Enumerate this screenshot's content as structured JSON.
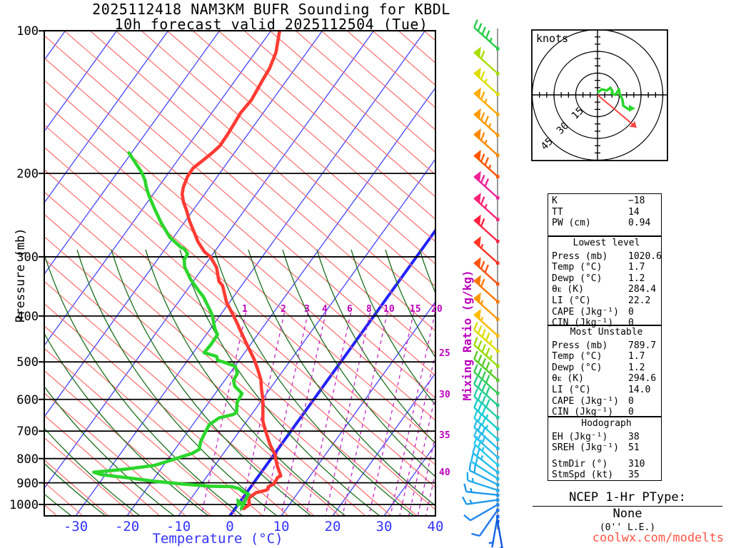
{
  "title": {
    "line1": "2025112418 NAM3KM BUFR Sounding for KBDL",
    "line2": "10h forecast valid 2025112504 (Tue)"
  },
  "watermark": {
    "text": "coolwx.com/modelts"
  },
  "axes": {
    "pressure_label": "Pressure (mb)",
    "temp_label": "Temperature (°C)",
    "mixing_label": "Mixing Ratio (g/kg)",
    "pressure_ticks": [
      100,
      200,
      300,
      400,
      500,
      600,
      700,
      800,
      900,
      1000
    ],
    "temp_ticks": [
      -30,
      -20,
      -10,
      0,
      10,
      20,
      30,
      40
    ],
    "mixing_ticks_top": [
      1,
      2,
      3,
      4,
      6,
      8,
      10,
      15,
      20
    ],
    "mixing_ticks_right": [
      25,
      30,
      35,
      40
    ]
  },
  "colors": {
    "temperature_trace": "#ff3b33",
    "dewpoint_trace": "#2cd62c",
    "isotherm": "#4444ff",
    "isotherm_zero": "#2222ff",
    "dry_adiabat": "#ff6060",
    "moist_adiabat": "#1b6e1b",
    "mixing_ratio": "#c322c3",
    "pressure_line": "#000000",
    "barb_line": "#999999",
    "hodo_arrow": "#ff4444",
    "hodo_trace": "#2cd62c",
    "watermark": "#ff5544",
    "temp_axis": "#3333ff"
  },
  "chart_data": {
    "type": "skewt-sounding",
    "pressure_range_mb": [
      100,
      1050
    ],
    "temp_axis_range_c": [
      -36,
      40
    ],
    "isotherm_step_c": 10,
    "temperature_profile": [
      {
        "p": 100,
        "t": -58.3
      },
      {
        "p": 111,
        "t": -56.0
      },
      {
        "p": 120,
        "t": -55.0
      },
      {
        "p": 127,
        "t": -54.7
      },
      {
        "p": 140,
        "t": -54.1
      },
      {
        "p": 149,
        "t": -54.4
      },
      {
        "p": 158,
        "t": -54.1
      },
      {
        "p": 166,
        "t": -53.9
      },
      {
        "p": 175,
        "t": -53.8
      },
      {
        "p": 181,
        "t": -54.3
      },
      {
        "p": 188,
        "t": -55.1
      },
      {
        "p": 195,
        "t": -55.9
      },
      {
        "p": 203,
        "t": -55.8
      },
      {
        "p": 214,
        "t": -55.1
      },
      {
        "p": 221,
        "t": -54.4
      },
      {
        "p": 230,
        "t": -53.0
      },
      {
        "p": 239,
        "t": -51.3
      },
      {
        "p": 252,
        "t": -49.2
      },
      {
        "p": 265,
        "t": -46.9
      },
      {
        "p": 279,
        "t": -44.6
      },
      {
        "p": 293,
        "t": -41.9
      },
      {
        "p": 300,
        "t": -40.1
      },
      {
        "p": 316,
        "t": -37.4
      },
      {
        "p": 338,
        "t": -35.0
      },
      {
        "p": 345,
        "t": -33.7
      },
      {
        "p": 374,
        "t": -30.6
      },
      {
        "p": 395,
        "t": -27.9
      },
      {
        "p": 415,
        "t": -25.5
      },
      {
        "p": 426,
        "t": -24.3
      },
      {
        "p": 449,
        "t": -21.8
      },
      {
        "p": 476,
        "t": -19.0
      },
      {
        "p": 494,
        "t": -17.2
      },
      {
        "p": 520,
        "t": -15.0
      },
      {
        "p": 546,
        "t": -13.0
      },
      {
        "p": 571,
        "t": -11.6
      },
      {
        "p": 598,
        "t": -10.0
      },
      {
        "p": 634,
        "t": -8.3
      },
      {
        "p": 666,
        "t": -6.9
      },
      {
        "p": 697,
        "t": -5.1
      },
      {
        "p": 747,
        "t": -2.2
      },
      {
        "p": 785,
        "t": 0.2
      },
      {
        "p": 829,
        "t": 2.2
      },
      {
        "p": 870,
        "t": 4.3
      },
      {
        "p": 877,
        "t": 3.9
      },
      {
        "p": 903,
        "t": 4.1
      },
      {
        "p": 918,
        "t": 3.4
      },
      {
        "p": 932,
        "t": 3.6
      },
      {
        "p": 945,
        "t": 1.8
      },
      {
        "p": 970,
        "t": 1.2
      },
      {
        "p": 1000,
        "t": 2.2
      },
      {
        "p": 1020.6,
        "t": 1.7
      }
    ],
    "dewpoint_profile": [
      {
        "p": 181,
        "t": -70.5
      },
      {
        "p": 199,
        "t": -65.3
      },
      {
        "p": 207,
        "t": -63.5
      },
      {
        "p": 214,
        "t": -62.3
      },
      {
        "p": 223,
        "t": -60.6
      },
      {
        "p": 238,
        "t": -57.6
      },
      {
        "p": 254,
        "t": -54.5
      },
      {
        "p": 273,
        "t": -50.7
      },
      {
        "p": 286,
        "t": -47.3
      },
      {
        "p": 289,
        "t": -46.2
      },
      {
        "p": 296,
        "t": -44.9
      },
      {
        "p": 304,
        "t": -44.8
      },
      {
        "p": 315,
        "t": -43.7
      },
      {
        "p": 334,
        "t": -40.9
      },
      {
        "p": 354,
        "t": -37.6
      },
      {
        "p": 364,
        "t": -35.9
      },
      {
        "p": 388,
        "t": -32.8
      },
      {
        "p": 398,
        "t": -31.6
      },
      {
        "p": 426,
        "t": -29.1
      },
      {
        "p": 438,
        "t": -27.8
      },
      {
        "p": 461,
        "t": -27.7
      },
      {
        "p": 478,
        "t": -27.9
      },
      {
        "p": 487,
        "t": -24.9
      },
      {
        "p": 496,
        "t": -24.2
      },
      {
        "p": 500,
        "t": -22.9
      },
      {
        "p": 511,
        "t": -19.9
      },
      {
        "p": 529,
        "t": -18.5
      },
      {
        "p": 547,
        "t": -18.3
      },
      {
        "p": 563,
        "t": -17.2
      },
      {
        "p": 583,
        "t": -14.8
      },
      {
        "p": 609,
        "t": -14.5
      },
      {
        "p": 639,
        "t": -13.2
      },
      {
        "p": 646,
        "t": -13.6
      },
      {
        "p": 656,
        "t": -15.8
      },
      {
        "p": 678,
        "t": -16.8
      },
      {
        "p": 705,
        "t": -16.5
      },
      {
        "p": 736,
        "t": -16.1
      },
      {
        "p": 765,
        "t": -15.3
      },
      {
        "p": 780,
        "t": -16.1
      },
      {
        "p": 792,
        "t": -17.6
      },
      {
        "p": 810,
        "t": -19.7
      },
      {
        "p": 827,
        "t": -21.7
      },
      {
        "p": 842,
        "t": -26.7
      },
      {
        "p": 855,
        "t": -32.6
      },
      {
        "p": 865,
        "t": -30.8
      },
      {
        "p": 880,
        "t": -24.6
      },
      {
        "p": 893,
        "t": -19.6
      },
      {
        "p": 905,
        "t": -13.9
      },
      {
        "p": 915,
        "t": -8.0
      },
      {
        "p": 917,
        "t": -3.7
      },
      {
        "p": 927,
        "t": -1.9
      },
      {
        "p": 938,
        "t": -1.0
      },
      {
        "p": 950,
        "t": 0.5
      },
      {
        "p": 1020.6,
        "t": 1.2
      }
    ],
    "mixing_ratio_lines_top_x": [
      343,
      397,
      430,
      455,
      490,
      517,
      541,
      578,
      608
    ],
    "mixing_ratio_lines_right_y": [
      495,
      553,
      610,
      662
    ],
    "wind_barbs": [
      {
        "p": 109,
        "spd": 45,
        "dir": 312,
        "color": "#22cc44"
      },
      {
        "p": 123,
        "spd": 60,
        "dir": 312,
        "color": "#aadd00"
      },
      {
        "p": 136,
        "spd": 65,
        "dir": 312,
        "color": "#dddd00"
      },
      {
        "p": 150,
        "spd": 65,
        "dir": 312,
        "color": "#ffaa00"
      },
      {
        "p": 166,
        "spd": 75,
        "dir": 312,
        "color": "#ff9900"
      },
      {
        "p": 183,
        "spd": 65,
        "dir": 312,
        "color": "#ff8800"
      },
      {
        "p": 203,
        "spd": 75,
        "dir": 312,
        "color": "#ff5500"
      },
      {
        "p": 225,
        "spd": 70,
        "dir": 312,
        "color": "#ee2299"
      },
      {
        "p": 250,
        "spd": 65,
        "dir": 312,
        "color": "#ff2277"
      },
      {
        "p": 278,
        "spd": 60,
        "dir": 312,
        "color": "#ff2244"
      },
      {
        "p": 309,
        "spd": 55,
        "dir": 312,
        "color": "#ff3322"
      },
      {
        "p": 342,
        "spd": 70,
        "dir": 312,
        "color": "#ff5511"
      },
      {
        "p": 373,
        "spd": 60,
        "dir": 312,
        "color": "#ff7700"
      },
      {
        "p": 406,
        "spd": 55,
        "dir": 312,
        "color": "#ff9900"
      },
      {
        "p": 440,
        "spd": 55,
        "dir": 312,
        "color": "#ffbb00"
      },
      {
        "p": 474,
        "spd": 45,
        "dir": 312,
        "color": "#dddd00"
      },
      {
        "p": 510,
        "spd": 45,
        "dir": 312,
        "color": "#99dd00"
      },
      {
        "p": 546,
        "spd": 45,
        "dir": 312,
        "color": "#55cc22"
      },
      {
        "p": 582,
        "spd": 40,
        "dir": 312,
        "color": "#33cc55"
      },
      {
        "p": 617,
        "spd": 40,
        "dir": 312,
        "color": "#22cc88"
      },
      {
        "p": 655,
        "spd": 40,
        "dir": 312,
        "color": "#22ccaa"
      },
      {
        "p": 692,
        "spd": 35,
        "dir": 312,
        "color": "#11cccc"
      },
      {
        "p": 728,
        "spd": 35,
        "dir": 312,
        "color": "#22ccdd"
      },
      {
        "p": 761,
        "spd": 30,
        "dir": 312,
        "color": "#22bbee"
      },
      {
        "p": 795,
        "spd": 30,
        "dir": 312,
        "color": "#33bbee"
      },
      {
        "p": 825,
        "spd": 25,
        "dir": 312,
        "color": "#22ccee"
      },
      {
        "p": 855,
        "spd": 25,
        "dir": 308,
        "color": "#22bbee"
      },
      {
        "p": 882,
        "spd": 20,
        "dir": 303,
        "color": "#22bbee"
      },
      {
        "p": 908,
        "spd": 20,
        "dir": 297,
        "color": "#22aaee"
      },
      {
        "p": 933,
        "spd": 15,
        "dir": 288,
        "color": "#22aaee"
      },
      {
        "p": 955,
        "spd": 15,
        "dir": 276,
        "color": "#2299ee"
      },
      {
        "p": 978,
        "spd": 15,
        "dir": 262,
        "color": "#2299ee"
      },
      {
        "p": 1001,
        "spd": 10,
        "dir": 240,
        "color": "#2288ee"
      },
      {
        "p": 1028,
        "spd": 10,
        "dir": 215,
        "color": "#2277ee"
      },
      {
        "p": 1060,
        "spd": 5,
        "dir": 190,
        "color": "#1166ee"
      },
      {
        "p": 1085,
        "spd": 5,
        "dir": 170,
        "color": "#1155dd"
      }
    ]
  },
  "hodograph": {
    "unit_label": "knots",
    "ring_labels": [
      15,
      30,
      45
    ],
    "ring_step_kt": 15,
    "tick_step_kt": 5,
    "trace_kt": [
      {
        "u": 0,
        "v": 1.5
      },
      {
        "u": 3,
        "v": 3.9
      },
      {
        "u": 6.4,
        "v": 3
      },
      {
        "u": 8.9,
        "v": 4.9
      },
      {
        "u": 10.3,
        "v": 2.5
      },
      {
        "u": 9.8,
        "v": 1
      },
      {
        "u": 12.3,
        "v": 0
      },
      {
        "u": 14.8,
        "v": 3.9
      },
      {
        "u": 15.2,
        "v": 1
      },
      {
        "u": 17.2,
        "v": -3.4
      },
      {
        "u": 17.7,
        "v": -7.4
      },
      {
        "u": 21.2,
        "v": -9.8
      },
      {
        "u": 23.6,
        "v": -9.3
      }
    ],
    "storm_motion": {
      "dir_deg": 310,
      "spd_kt": 35
    }
  },
  "tables": [
    {
      "title": "",
      "rows": [
        [
          "K",
          "−18"
        ],
        [
          "TT",
          "14"
        ],
        [
          "PW (cm)",
          "0.94"
        ]
      ]
    },
    {
      "title": "Lowest level",
      "rows": [
        [
          "Press (mb)",
          "1020.6"
        ],
        [
          "Temp (°C)",
          "1.7"
        ],
        [
          "Dewp (°C)",
          "1.2"
        ],
        [
          "θᴇ (K)",
          "284.4"
        ],
        [
          "LI (°C)",
          "22.2"
        ],
        [
          "CAPE (Jkg⁻¹)",
          "0"
        ],
        [
          "CIN (Jkg⁻¹)",
          "0"
        ]
      ]
    },
    {
      "title": "Most Unstable",
      "rows": [
        [
          "Press (mb)",
          "789.7"
        ],
        [
          "Temp (°C)",
          "1.7"
        ],
        [
          "Dewp (°C)",
          "1.2"
        ],
        [
          "θᴇ (K)",
          "294.6"
        ],
        [
          "LI (°C)",
          "14.0"
        ],
        [
          "CAPE (Jkg⁻¹)",
          "0"
        ],
        [
          "CIN (Jkg⁻¹)",
          "0"
        ]
      ]
    },
    {
      "title": "Hodograph",
      "rows": [
        [
          "EH (Jkg⁻¹)",
          "38"
        ],
        [
          "SREH (Jkg⁻¹)",
          "51"
        ],
        [
          "",
          ""
        ],
        [
          "StmDir (°)",
          "310"
        ],
        [
          "StmSpd (kt)",
          "35"
        ]
      ]
    }
  ],
  "ptype": {
    "title": "NCEP 1-Hr PType:",
    "value": "None",
    "note": "(0'' L.E.)"
  }
}
